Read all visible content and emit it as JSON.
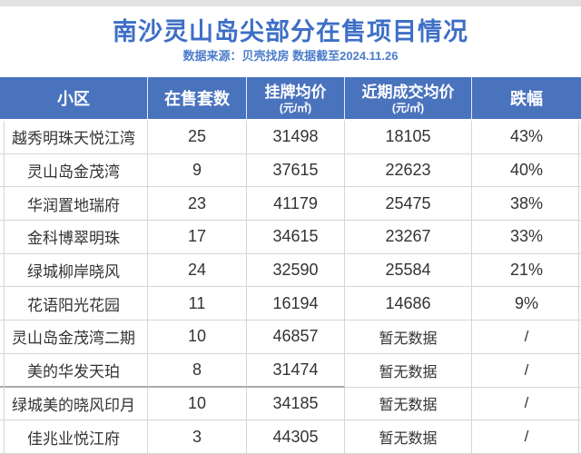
{
  "colors": {
    "header_bg": "#4A73BE",
    "title": "#3E6FC6",
    "subtitle": "#4C7DCB",
    "border": "#D5D5D5",
    "body_text": "#333333"
  },
  "page": {
    "title": "南沙灵山岛尖部分在售项目情况",
    "source_note": "数据来源：贝壳找房 数据截至2024.11.26"
  },
  "table": {
    "headers": {
      "community": "小区",
      "units": "在售套数",
      "listing_price": "挂牌均价",
      "listing_price_unit": "(元/㎡)",
      "deal_price": "近期成交均价",
      "deal_price_unit": "(元/㎡)",
      "drop": "跌幅"
    }
  },
  "chart_data": {
    "type": "table",
    "title": "南沙灵山岛尖部分在售项目情况",
    "subtitle": "数据来源：贝壳找房 数据截至2024.11.26",
    "columns": [
      "小区",
      "在售套数",
      "挂牌均价(元/㎡)",
      "近期成交均价(元/㎡)",
      "跌幅"
    ],
    "rows": [
      [
        "越秀明珠天悦江湾",
        "25",
        "31498",
        "18105",
        "43%"
      ],
      [
        "灵山岛金茂湾",
        "9",
        "37615",
        "22623",
        "40%"
      ],
      [
        "华润置地瑞府",
        "23",
        "41179",
        "25475",
        "38%"
      ],
      [
        "金科博翠明珠",
        "17",
        "34615",
        "23267",
        "33%"
      ],
      [
        "绿城柳岸晓风",
        "24",
        "32590",
        "25584",
        "21%"
      ],
      [
        "花语阳光花园",
        "11",
        "16194",
        "14686",
        "9%"
      ],
      [
        "灵山岛金茂湾二期",
        "10",
        "46857",
        "暂无数据",
        "/"
      ],
      [
        "美的华发天珀",
        "8",
        "31474",
        "暂无数据",
        "/"
      ],
      [
        "绿城美的晓风印月",
        "10",
        "34185",
        "暂无数据",
        "/"
      ],
      [
        "佳兆业悦江府",
        "3",
        "44305",
        "暂无数据",
        "/"
      ]
    ]
  }
}
